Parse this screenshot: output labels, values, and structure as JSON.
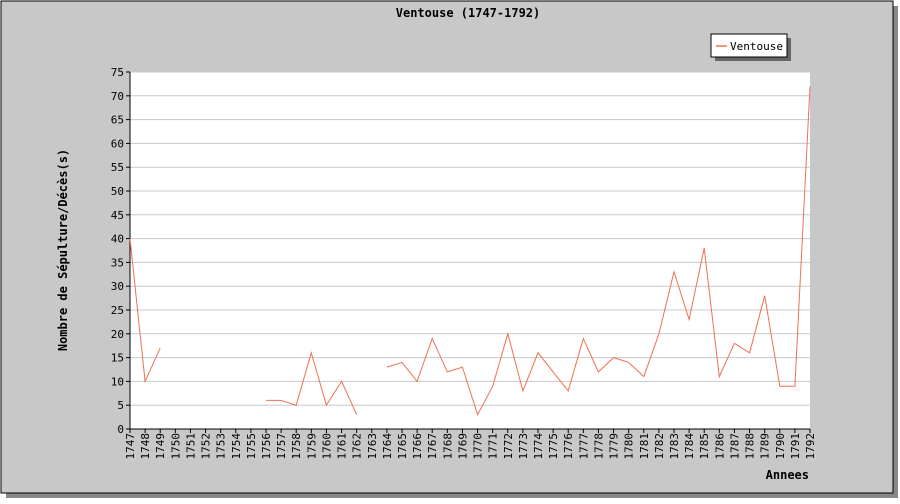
{
  "colors": {
    "outer_background": "#c8c8c8",
    "plot_background": "#ffffff",
    "gridline": "#c8c8c8",
    "series": "#f07050",
    "text": "#000000"
  },
  "chart_data": {
    "type": "line",
    "title": "Ventouse (1747-1792)",
    "xlabel": "Annees",
    "ylabel": "Nombre de Sépulture/Décès(s)",
    "ylim": [
      0,
      75
    ],
    "yticks": [
      0,
      5,
      10,
      15,
      20,
      25,
      30,
      35,
      40,
      45,
      50,
      55,
      60,
      65,
      70,
      75
    ],
    "grid": true,
    "legend_position": "top-right",
    "categories": [
      "1747",
      "1748",
      "1749",
      "1750",
      "1751",
      "1752",
      "1753",
      "1754",
      "1755",
      "1756",
      "1757",
      "1758",
      "1759",
      "1760",
      "1761",
      "1762",
      "1763",
      "1764",
      "1765",
      "1766",
      "1767",
      "1768",
      "1769",
      "1770",
      "1771",
      "1772",
      "1773",
      "1774",
      "1775",
      "1776",
      "1777",
      "1778",
      "1779",
      "1780",
      "1781",
      "1782",
      "1783",
      "1784",
      "1785",
      "1786",
      "1787",
      "1788",
      "1789",
      "1790",
      "1791",
      "1792"
    ],
    "series": [
      {
        "name": "Ventouse",
        "color": "#f07050",
        "values": [
          40,
          10,
          17,
          null,
          null,
          null,
          null,
          null,
          null,
          6,
          6,
          5,
          16,
          5,
          10,
          3,
          null,
          13,
          14,
          10,
          19,
          12,
          13,
          3,
          9,
          20,
          8,
          16,
          12,
          8,
          19,
          12,
          15,
          14,
          11,
          20,
          33,
          23,
          38,
          11,
          18,
          16,
          28,
          9,
          9,
          72
        ]
      }
    ]
  }
}
